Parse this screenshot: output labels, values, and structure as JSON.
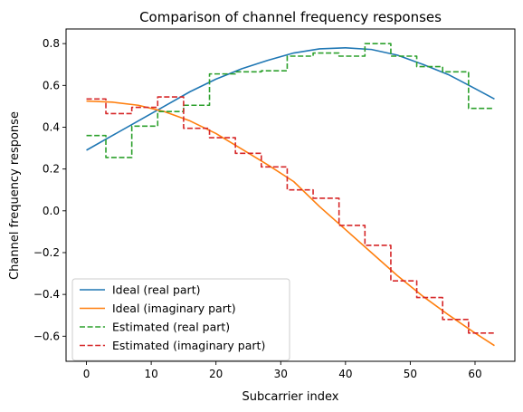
{
  "chart_data": {
    "type": "line",
    "title": "Comparison of channel frequency responses",
    "xlabel": "Subcarrier index",
    "ylabel": "Channel frequency response",
    "xlim": [
      -3.15,
      66.15
    ],
    "ylim": [
      -0.72,
      0.87
    ],
    "xticks": [
      0,
      10,
      20,
      30,
      40,
      50,
      60
    ],
    "xtick_labels": [
      "0",
      "10",
      "20",
      "30",
      "40",
      "50",
      "60"
    ],
    "yticks": [
      -0.6,
      -0.4,
      -0.2,
      0.0,
      0.2,
      0.4,
      0.6,
      0.8
    ],
    "ytick_labels": [
      "−0.6",
      "−0.4",
      "−0.2",
      "0.0",
      "0.2",
      "0.4",
      "0.6",
      "0.8"
    ],
    "grid": false,
    "legend_position": "lower-left",
    "series": [
      {
        "name": "Ideal (real part)",
        "color": "#1f77b4",
        "style": "solid",
        "x": [
          0,
          4,
          8,
          12,
          16,
          20,
          24,
          28,
          32,
          36,
          40,
          44,
          48,
          52,
          56,
          60,
          63
        ],
        "y": [
          0.29,
          0.36,
          0.43,
          0.5,
          0.57,
          0.63,
          0.68,
          0.72,
          0.755,
          0.775,
          0.78,
          0.772,
          0.745,
          0.7,
          0.65,
          0.585,
          0.535
        ]
      },
      {
        "name": "Ideal (imaginary part)",
        "color": "#ff7f0e",
        "style": "solid",
        "x": [
          0,
          4,
          8,
          12,
          16,
          20,
          24,
          28,
          32,
          36,
          40,
          44,
          48,
          52,
          56,
          60,
          63
        ],
        "y": [
          0.525,
          0.52,
          0.505,
          0.475,
          0.43,
          0.37,
          0.295,
          0.22,
          0.14,
          0.02,
          -0.09,
          -0.2,
          -0.31,
          -0.41,
          -0.5,
          -0.585,
          -0.645
        ]
      },
      {
        "name": "Estimated (real part)",
        "color": "#2ca02c",
        "style": "dashed",
        "x": [
          0,
          1,
          2,
          3,
          4,
          5,
          6,
          7,
          8,
          9,
          10,
          11,
          12,
          13,
          14,
          15,
          16,
          17,
          18,
          19,
          20,
          21,
          22,
          23,
          24,
          25,
          26,
          27,
          28,
          29,
          30,
          31,
          32,
          33,
          34,
          35,
          36,
          37,
          38,
          39,
          40,
          41,
          42,
          43,
          44,
          45,
          46,
          47,
          48,
          49,
          50,
          51,
          52,
          53,
          54,
          55,
          56,
          57,
          58,
          59,
          60,
          61,
          62,
          63
        ],
        "y": [
          0.36,
          0.36,
          0.36,
          0.255,
          0.255,
          0.255,
          0.255,
          0.405,
          0.405,
          0.405,
          0.405,
          0.475,
          0.475,
          0.475,
          0.475,
          0.505,
          0.505,
          0.505,
          0.505,
          0.655,
          0.655,
          0.655,
          0.655,
          0.665,
          0.665,
          0.665,
          0.665,
          0.67,
          0.67,
          0.67,
          0.67,
          0.74,
          0.74,
          0.74,
          0.74,
          0.755,
          0.755,
          0.755,
          0.755,
          0.74,
          0.74,
          0.74,
          0.74,
          0.8,
          0.8,
          0.8,
          0.8,
          0.74,
          0.74,
          0.74,
          0.74,
          0.69,
          0.69,
          0.69,
          0.69,
          0.665,
          0.665,
          0.665,
          0.665,
          0.49,
          0.49,
          0.49,
          0.49,
          0.49
        ]
      },
      {
        "name": "Estimated (imaginary part)",
        "color": "#d62728",
        "style": "dashed",
        "x": [
          0,
          1,
          2,
          3,
          4,
          5,
          6,
          7,
          8,
          9,
          10,
          11,
          12,
          13,
          14,
          15,
          16,
          17,
          18,
          19,
          20,
          21,
          22,
          23,
          24,
          25,
          26,
          27,
          28,
          29,
          30,
          31,
          32,
          33,
          34,
          35,
          36,
          37,
          38,
          39,
          40,
          41,
          42,
          43,
          44,
          45,
          46,
          47,
          48,
          49,
          50,
          51,
          52,
          53,
          54,
          55,
          56,
          57,
          58,
          59,
          60,
          61,
          62,
          63
        ],
        "y": [
          0.535,
          0.535,
          0.535,
          0.465,
          0.465,
          0.465,
          0.465,
          0.495,
          0.495,
          0.495,
          0.495,
          0.545,
          0.545,
          0.545,
          0.545,
          0.395,
          0.395,
          0.395,
          0.395,
          0.35,
          0.35,
          0.35,
          0.35,
          0.275,
          0.275,
          0.275,
          0.275,
          0.21,
          0.21,
          0.21,
          0.21,
          0.1,
          0.1,
          0.1,
          0.1,
          0.06,
          0.06,
          0.06,
          0.06,
          -0.07,
          -0.07,
          -0.07,
          -0.07,
          -0.165,
          -0.165,
          -0.165,
          -0.165,
          -0.335,
          -0.335,
          -0.335,
          -0.335,
          -0.415,
          -0.415,
          -0.415,
          -0.415,
          -0.52,
          -0.52,
          -0.52,
          -0.52,
          -0.585,
          -0.585,
          -0.585,
          -0.585,
          -0.585
        ]
      }
    ]
  }
}
